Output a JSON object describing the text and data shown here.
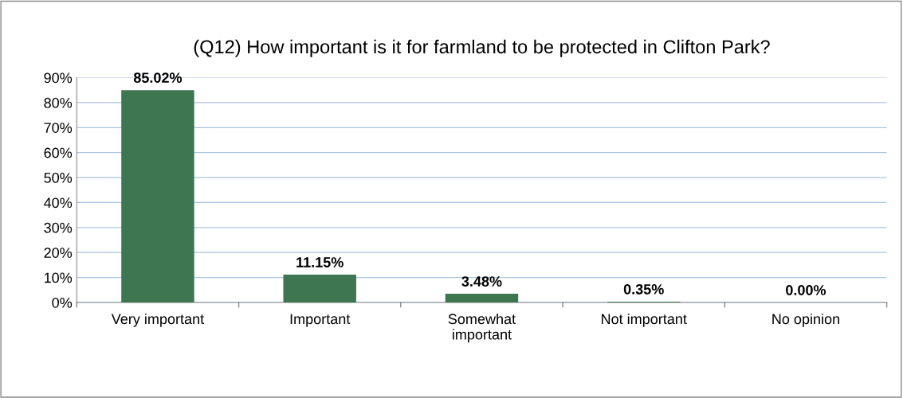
{
  "chart_data": {
    "type": "bar",
    "title": "(Q12) How important is it for farmland to be protected in Clifton Park?",
    "categories": [
      "Very important",
      "Important",
      "Somewhat\nimportant",
      "Not important",
      "No opinion"
    ],
    "values": [
      85.02,
      11.15,
      3.48,
      0.35,
      0.0
    ],
    "value_labels": [
      "85.02%",
      "11.15%",
      "3.48%",
      "0.35%",
      "0.00%"
    ],
    "color": "#3e7652",
    "ylim": [
      0,
      90
    ],
    "yticks": [
      {
        "value": 0,
        "label": "0%"
      },
      {
        "value": 10,
        "label": "10%"
      },
      {
        "value": 20,
        "label": "20%"
      },
      {
        "value": 30,
        "label": "30%"
      },
      {
        "value": 40,
        "label": "40%"
      },
      {
        "value": 50,
        "label": "50%"
      },
      {
        "value": 60,
        "label": "60%"
      },
      {
        "value": 70,
        "label": "70%"
      },
      {
        "value": 80,
        "label": "80%"
      },
      {
        "value": 90,
        "label": "90%"
      }
    ],
    "grid": "y"
  }
}
